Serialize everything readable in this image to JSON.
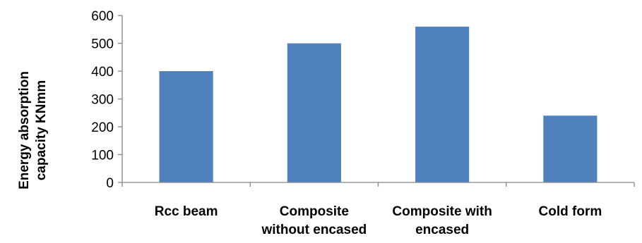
{
  "chart_data": {
    "type": "bar",
    "categories": [
      [
        "Rcc beam"
      ],
      [
        "Composite",
        "without encased"
      ],
      [
        "Composite with",
        "encased"
      ],
      [
        "Cold form"
      ]
    ],
    "values": [
      400,
      500,
      560,
      240
    ],
    "ylabel": [
      "Energy absorption",
      "capacity KNmm"
    ],
    "ylim": [
      0,
      600
    ],
    "yticks": [
      0,
      100,
      200,
      300,
      400,
      500,
      600
    ],
    "grid": false,
    "legend": "none",
    "colors": {
      "bar": "#4F81BD",
      "axis": "#868686"
    }
  }
}
